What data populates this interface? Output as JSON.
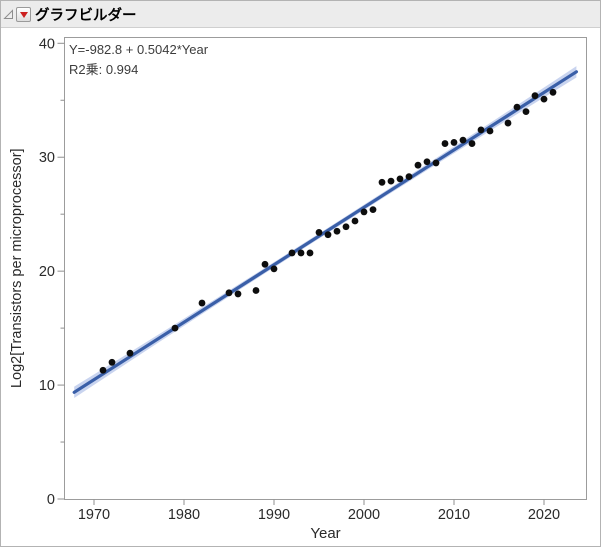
{
  "header": {
    "title": "グラフビルダー"
  },
  "annotation": {
    "equation": "Y=-982.8 + 0.5042*Year",
    "r_squared": "R2乗: 0.994"
  },
  "chart_data": {
    "type": "scatter",
    "title": "",
    "xlabel": "Year",
    "ylabel": "Log2[Transistors per microprocessor]",
    "xlim": [
      1966.7,
      2024.7
    ],
    "ylim": [
      0,
      40.6
    ],
    "x_ticks": [
      1970,
      1980,
      1990,
      2000,
      2010,
      2020
    ],
    "y_ticks": [
      0,
      10,
      20,
      30,
      40
    ],
    "y_minor_ticks": [
      5,
      15,
      25,
      35
    ],
    "grid": false,
    "legend": "none",
    "points": [
      [
        1971,
        11.3
      ],
      [
        1972,
        12.0
      ],
      [
        1974,
        12.8
      ],
      [
        1979,
        15.0
      ],
      [
        1982,
        17.2
      ],
      [
        1985,
        18.1
      ],
      [
        1986,
        18.0
      ],
      [
        1988,
        18.3
      ],
      [
        1989,
        20.6
      ],
      [
        1990,
        20.2
      ],
      [
        1992,
        21.6
      ],
      [
        1993,
        21.6
      ],
      [
        1994,
        21.6
      ],
      [
        1995,
        23.4
      ],
      [
        1996,
        23.2
      ],
      [
        1997,
        23.5
      ],
      [
        1998,
        23.9
      ],
      [
        1999,
        24.4
      ],
      [
        2000,
        25.2
      ],
      [
        2001,
        25.4
      ],
      [
        2002,
        27.8
      ],
      [
        2003,
        27.9
      ],
      [
        2004,
        28.1
      ],
      [
        2005,
        28.3
      ],
      [
        2006,
        29.3
      ],
      [
        2007,
        29.6
      ],
      [
        2008,
        29.5
      ],
      [
        2009,
        31.2
      ],
      [
        2010,
        31.3
      ],
      [
        2011,
        31.5
      ],
      [
        2012,
        31.2
      ],
      [
        2013,
        32.4
      ],
      [
        2014,
        32.3
      ],
      [
        2016,
        33.0
      ],
      [
        2017,
        34.4
      ],
      [
        2018,
        34.0
      ],
      [
        2019,
        35.4
      ],
      [
        2020,
        35.1
      ],
      [
        2021,
        35.7
      ]
    ],
    "fit": {
      "intercept": -982.8,
      "slope": 0.5042,
      "r2": 0.994,
      "draw_from": 1967.8,
      "draw_to": 2023.6
    },
    "colors": {
      "line": "#3a5fa8",
      "confidence_band": "#b7c5e9",
      "point": "#0d0d0d",
      "frame": "#9c9c9c",
      "tick": "#8f8f8f",
      "text": "#2a2a2a"
    }
  }
}
